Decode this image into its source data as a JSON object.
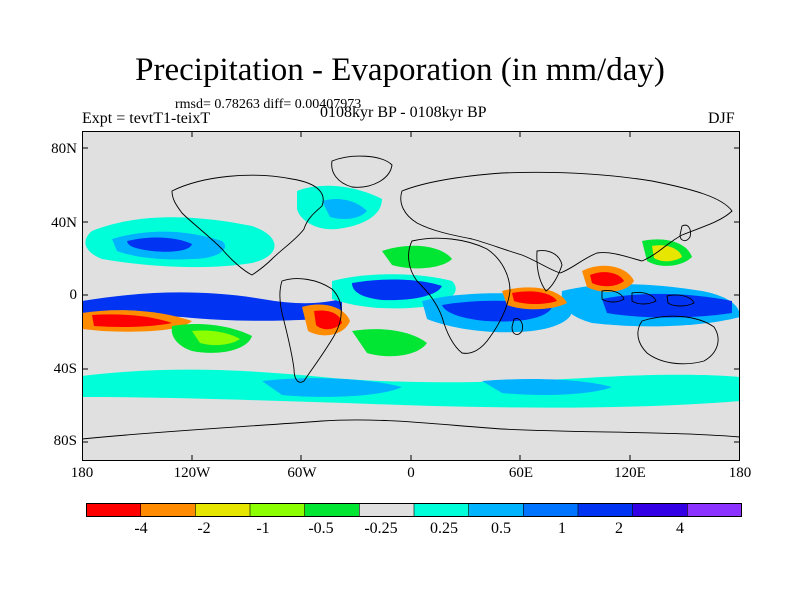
{
  "header": {
    "title": "Precipitation - Evaporation (in mm/day)",
    "stats": "rmsd= 0.78263 diff= 0.00407973",
    "expt": "Expt = tevtT1-teixT",
    "period": "0108kyr BP - 0108kyr BP",
    "season": "DJF"
  },
  "axes": {
    "y_ticks": [
      "80N",
      "40N",
      "0",
      "40S",
      "80S"
    ],
    "x_ticks": [
      "180",
      "120W",
      "60W",
      "0",
      "60E",
      "120E",
      "180"
    ]
  },
  "colorbar": {
    "colors": [
      "#ff0000",
      "#ff8c00",
      "#e6e600",
      "#8cff00",
      "#00e633",
      "#e0e0e0",
      "#00ffd9",
      "#00b3ff",
      "#0073ff",
      "#0033f2",
      "#3300e6",
      "#8c33ff"
    ],
    "labels": [
      "-4",
      "-2",
      "-1",
      "-0.5",
      "-0.25",
      "0.25",
      "0.5",
      "1",
      "2",
      "4"
    ]
  },
  "map_colors": {
    "ocean_background": "#e0e0e0",
    "coastline": "#000000"
  }
}
